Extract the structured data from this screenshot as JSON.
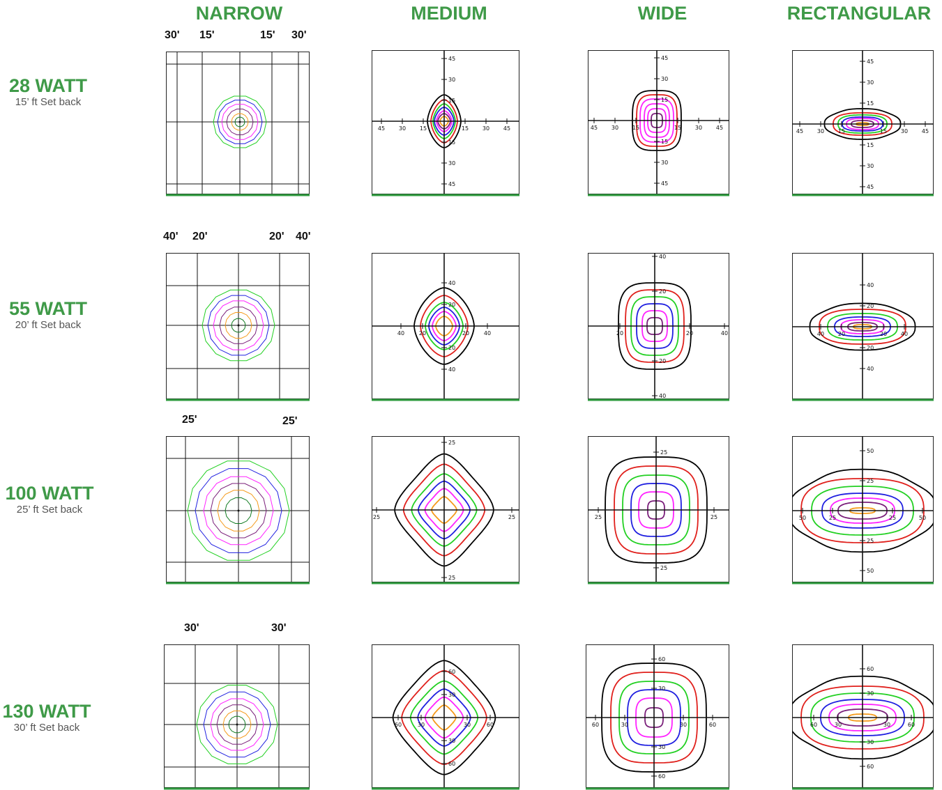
{
  "columns": [
    "NARROW",
    "MEDIUM",
    "WIDE",
    "RECTANGULAR"
  ],
  "rows": [
    {
      "watt": "28 WATT",
      "setback": "15’ ft Set back",
      "dims": [
        "30'",
        "15'",
        "15'",
        "30'"
      ],
      "ticks": [
        "45",
        "30",
        "15"
      ]
    },
    {
      "watt": "55 WATT",
      "setback": "20’ ft Set back",
      "dims": [
        "40'",
        "20'",
        "20'",
        "40'"
      ],
      "ticks": [
        "40",
        "20"
      ],
      "rect_ticks": [
        "40",
        "20"
      ]
    },
    {
      "watt": "100 WATT",
      "setback": "25’ ft Set back",
      "dims": [
        "25'",
        "25'"
      ],
      "ticks": [
        "25"
      ],
      "rect_ticks": [
        "50",
        "25"
      ]
    },
    {
      "watt": "130 WATT",
      "setback": "30’ ft Set back",
      "dims": [
        "30'",
        "30'"
      ],
      "ticks": [
        "60",
        "30"
      ],
      "rect_ticks": [
        "60",
        "30"
      ]
    }
  ],
  "contour_colors": [
    "#000000",
    "#e0201c",
    "#22d022",
    "#1f1fe0",
    "#ff22ff",
    "#7a1f7a",
    "#f59a1a",
    "#0f7a1f"
  ],
  "baseline_color": "#2e9a3e"
}
